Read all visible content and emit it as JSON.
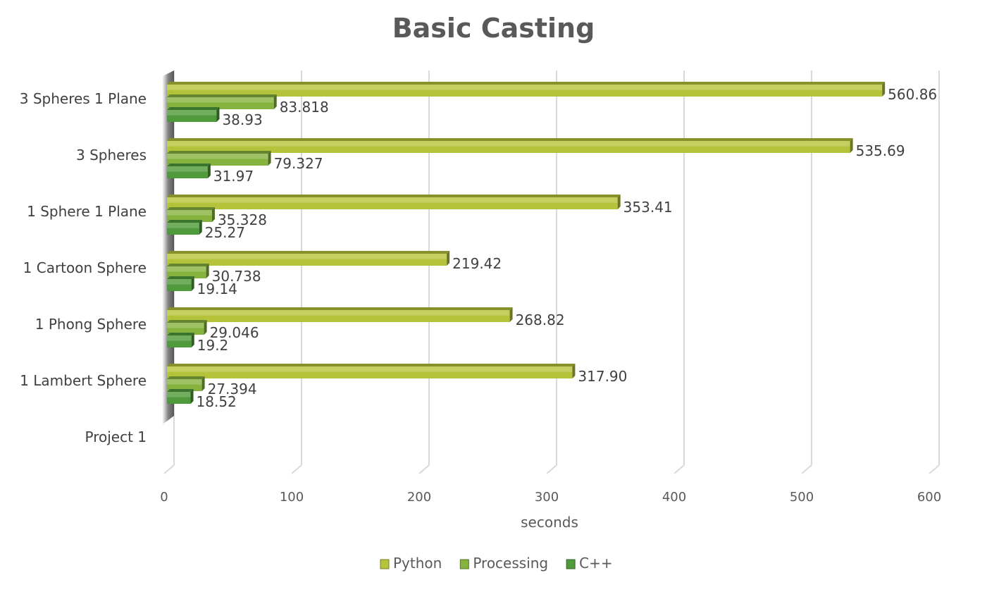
{
  "chart_data": {
    "type": "bar",
    "orientation": "horizontal",
    "title": "Basic Casting",
    "xlabel": "seconds",
    "ylabel": "",
    "xlim": [
      0,
      600
    ],
    "xticks": [
      0,
      100,
      200,
      300,
      400,
      500,
      600
    ],
    "grid": "vertical",
    "legend_position": "bottom",
    "categories": [
      "3 Spheres 1 Plane",
      "3 Spheres",
      "1 Sphere 1 Plane",
      "1 Cartoon Sphere",
      "1 Phong Sphere",
      "1 Lambert Sphere",
      "Project 1"
    ],
    "series": [
      {
        "name": "Python",
        "color": "#b5c33a",
        "values": [
          560.86,
          535.69,
          353.41,
          219.42,
          268.82,
          317.9,
          null
        ],
        "labels": [
          "560.86",
          "535.69",
          "353.41",
          "219.42",
          "268.82",
          "317.90",
          ""
        ]
      },
      {
        "name": "Processing",
        "color": "#86b23e",
        "values": [
          83.818,
          79.327,
          35.328,
          30.738,
          29.046,
          27.394,
          null
        ],
        "labels": [
          "83.818",
          "79.327",
          "35.328",
          "30.738",
          "29.046",
          "27.394",
          ""
        ]
      },
      {
        "name": "C++",
        "color": "#4f9a3a",
        "values": [
          38.93,
          31.97,
          25.27,
          19.14,
          19.2,
          18.52,
          null
        ],
        "labels": [
          "38.93",
          "31.97",
          "25.27",
          "19.14",
          "19.2",
          "18.52",
          ""
        ]
      }
    ]
  }
}
